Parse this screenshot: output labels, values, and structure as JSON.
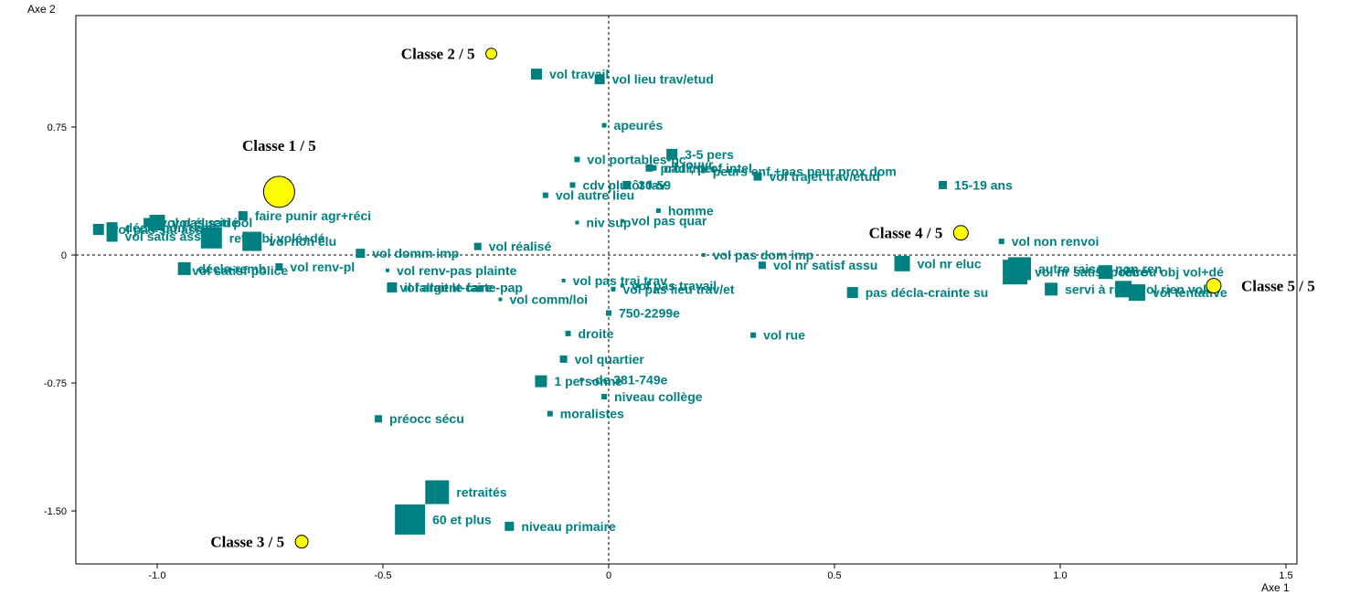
{
  "chart_data": {
    "type": "scatter",
    "xlabel": "Axe 1",
    "ylabel": "Axe 2",
    "xlim": [
      -1.2,
      1.52
    ],
    "ylim": [
      -1.81,
      1.4
    ],
    "x_ticks": [
      -1.0,
      -0.5,
      0,
      0.5,
      1.0,
      1.5
    ],
    "x_tick_labels": [
      "-1.0",
      "-0.5",
      "0",
      "0.5",
      "1.0",
      "1.5"
    ],
    "y_ticks": [
      0.75,
      0,
      -0.75,
      -1.5
    ],
    "y_tick_labels": [
      "0.75",
      "0",
      "-0.75",
      "-1.50"
    ],
    "marker_color": "#008080",
    "class_color": "#ffff00",
    "classes": [
      {
        "label": "Classe  1 /  5",
        "x": -0.73,
        "y": 0.37,
        "size": 17
      },
      {
        "label": "Classe  2 /  5",
        "x": -0.26,
        "y": 1.18,
        "size": 6
      },
      {
        "label": "Classe  3 /  5",
        "x": -0.68,
        "y": -1.68,
        "size": 7
      },
      {
        "label": "Classe  4 /  5",
        "x": 0.78,
        "y": 0.13,
        "size": 8
      },
      {
        "label": "Classe  5 /  5",
        "x": 1.34,
        "y": -0.18,
        "size": 8
      }
    ],
    "points": [
      {
        "label": "vol travail",
        "x": -0.16,
        "y": 1.06,
        "size": 12
      },
      {
        "label": "vol lieu trav/etud",
        "x": -0.02,
        "y": 1.03,
        "size": 11
      },
      {
        "label": "apeurés",
        "x": -0.01,
        "y": 0.76,
        "size": 5
      },
      {
        "label": "vol portables-pc",
        "x": -0.07,
        "y": 0.56,
        "size": 6
      },
      {
        "label": "3-5 pers",
        "x": 0.14,
        "y": 0.59,
        "size": 12
      },
      {
        "label": "prof inter",
        "x": 0.09,
        "y": 0.51,
        "size": 8
      },
      {
        "label": "cadr, prof intel",
        "x": 0.1,
        "y": 0.51,
        "size": 6
      },
      {
        "label": "ouvr",
        "x": 0.15,
        "y": 0.53,
        "size": 4
      },
      {
        "label": "peurs enf.+pas peur prox dom",
        "x": 0.21,
        "y": 0.49,
        "size": 4
      },
      {
        "label": "vol trajet trav/etud",
        "x": 0.33,
        "y": 0.46,
        "size": 9
      },
      {
        "label": "15-19 ans",
        "x": 0.74,
        "y": 0.41,
        "size": 9
      },
      {
        "label": "cdv plutôt fav",
        "x": -0.08,
        "y": 0.41,
        "size": 6
      },
      {
        "label": "vol autre lieu",
        "x": -0.14,
        "y": 0.35,
        "size": 6
      },
      {
        "label": "30-59",
        "x": 0.04,
        "y": 0.41,
        "size": 9
      },
      {
        "label": "homme",
        "x": 0.11,
        "y": 0.26,
        "size": 5
      },
      {
        "label": "vol pas quar",
        "x": 0.03,
        "y": 0.2,
        "size": 4
      },
      {
        "label": "niv sup",
        "x": -0.07,
        "y": 0.19,
        "size": 4
      },
      {
        "label": "vol pas dom imp",
        "x": 0.21,
        "y": 0.0,
        "size": 4
      },
      {
        "label": "vol réalisé",
        "x": -0.29,
        "y": 0.05,
        "size": 8
      },
      {
        "label": "vol élucidé",
        "x": -1.0,
        "y": 0.19,
        "size": 17
      },
      {
        "label": "vol pas sati pol",
        "x": -1.02,
        "y": 0.19,
        "size": 10
      },
      {
        "label": "décla-non remb",
        "x": -1.1,
        "y": 0.16,
        "size": 12
      },
      {
        "label": "retr obj volé+dé",
        "x": -0.88,
        "y": 0.1,
        "size": 23
      },
      {
        "label": "vol pas sat ass",
        "x": -1.13,
        "y": 0.15,
        "size": 12
      },
      {
        "label": "vol satis ass",
        "x": -1.1,
        "y": 0.11,
        "size": 12
      },
      {
        "label": "décla-remb",
        "x": -0.94,
        "y": -0.08,
        "size": 14
      },
      {
        "label": "faire punir agr+réci",
        "x": -0.81,
        "y": 0.23,
        "size": 10
      },
      {
        "label": "vol non élu",
        "x": -0.79,
        "y": 0.08,
        "size": 21
      },
      {
        "label": "vol domm imp",
        "x": -0.55,
        "y": 0.01,
        "size": 10
      },
      {
        "label": "vol renv-pl",
        "x": -0.73,
        "y": -0.07,
        "size": 8
      },
      {
        "label": "vol satisf police",
        "x": -0.94,
        "y": -0.09,
        "size": 1
      },
      {
        "label": "il fallait le faire",
        "x": -0.48,
        "y": -0.19,
        "size": 11
      },
      {
        "label": "vol renv-pas plainte",
        "x": -0.49,
        "y": -0.09,
        "size": 4
      },
      {
        "label": "vol argent-carte-pap",
        "x": -0.48,
        "y": -0.19,
        "size": 1
      },
      {
        "label": "vol pas traj trav",
        "x": -0.1,
        "y": -0.15,
        "size": 4
      },
      {
        "label": "vol pas travail",
        "x": 0.03,
        "y": -0.18,
        "size": 4
      },
      {
        "label": "vol pas lieu trav/et",
        "x": 0.01,
        "y": -0.2,
        "size": 5
      },
      {
        "label": "vol comm/loi",
        "x": -0.24,
        "y": -0.26,
        "size": 4
      },
      {
        "label": "750-2299e",
        "x": 0.0,
        "y": -0.34,
        "size": 6
      },
      {
        "label": "droite",
        "x": -0.09,
        "y": -0.46,
        "size": 6
      },
      {
        "label": "vol quartier",
        "x": -0.1,
        "y": -0.61,
        "size": 8
      },
      {
        "label": "1 personne",
        "x": -0.15,
        "y": -0.74,
        "size": 13
      },
      {
        "label": "-de 381-749e",
        "x": -0.06,
        "y": -0.73,
        "size": 4
      },
      {
        "label": "niveau collège",
        "x": -0.01,
        "y": -0.83,
        "size": 6
      },
      {
        "label": "moralistes",
        "x": -0.13,
        "y": -0.93,
        "size": 6
      },
      {
        "label": "préocc sécu",
        "x": -0.51,
        "y": -0.96,
        "size": 8
      },
      {
        "label": "retraités",
        "x": -0.38,
        "y": -1.39,
        "size": 26
      },
      {
        "label": "60 et plus",
        "x": -0.44,
        "y": -1.55,
        "size": 33
      },
      {
        "label": "niveau primaire",
        "x": -0.22,
        "y": -1.59,
        "size": 10
      },
      {
        "label": "vol nr satisf assu",
        "x": 0.34,
        "y": -0.06,
        "size": 8
      },
      {
        "label": "vol rue",
        "x": 0.32,
        "y": -0.47,
        "size": 6
      },
      {
        "label": "pas décla-crainte su",
        "x": 0.54,
        "y": -0.22,
        "size": 12
      },
      {
        "label": "vol nr eluc",
        "x": 0.65,
        "y": -0.05,
        "size": 17
      },
      {
        "label": "vol nr satisf police",
        "x": 0.9,
        "y": -0.1,
        "size": 27
      },
      {
        "label": "autre raison non ren",
        "x": 0.91,
        "y": -0.08,
        "size": 25
      },
      {
        "label": "vol non renvoi",
        "x": 0.87,
        "y": 0.08,
        "size": 6
      },
      {
        "label": "retrou obj vol+dé",
        "x": 1.1,
        "y": -0.1,
        "size": 15
      },
      {
        "label": "servi à rien",
        "x": 0.98,
        "y": -0.2,
        "size": 14
      },
      {
        "label": "vol rien volé",
        "x": 1.14,
        "y": -0.2,
        "size": 18
      },
      {
        "label": "vol tentative",
        "x": 1.17,
        "y": -0.22,
        "size": 18
      }
    ],
    "legend": "none",
    "grid": false
  }
}
